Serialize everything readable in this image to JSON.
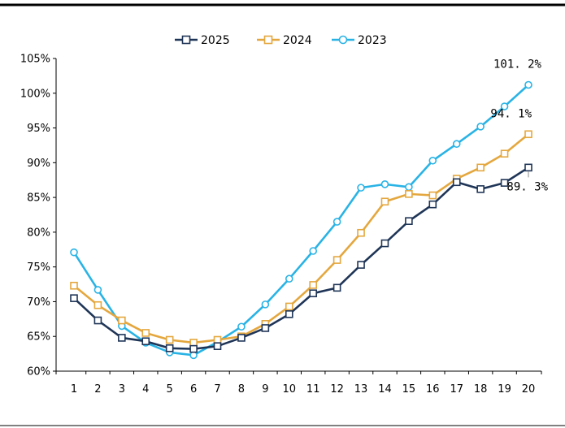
{
  "chart_data": {
    "type": "line",
    "x": [
      1,
      2,
      3,
      4,
      5,
      6,
      7,
      8,
      9,
      10,
      11,
      12,
      13,
      14,
      15,
      16,
      17,
      18,
      19,
      20
    ],
    "ylim": [
      60,
      105
    ],
    "yticks": [
      60,
      65,
      70,
      75,
      80,
      85,
      90,
      95,
      100,
      105
    ],
    "ytick_labels": [
      "60%",
      "65%",
      "70%",
      "75%",
      "80%",
      "85%",
      "90%",
      "95%",
      "100%",
      "105%"
    ],
    "xtick_labels": [
      "1",
      "2",
      "3",
      "4",
      "5",
      "6",
      "7",
      "8",
      "9",
      "10",
      "11",
      "12",
      "13",
      "14",
      "15",
      "16",
      "17",
      "18",
      "19",
      "20"
    ],
    "grid": false,
    "legend_position": "top-center",
    "series": [
      {
        "name": "2025",
        "color": "#1f3557",
        "marker": "square",
        "values": [
          70.5,
          67.3,
          64.8,
          64.3,
          63.3,
          63.2,
          63.6,
          64.8,
          66.2,
          68.2,
          71.2,
          72.0,
          75.3,
          78.4,
          81.6,
          84.0,
          87.2,
          86.2,
          87.1,
          89.3
        ],
        "end_label": "89. 3%"
      },
      {
        "name": "2024",
        "color": "#e4a73e",
        "marker": "square",
        "values": [
          72.3,
          69.5,
          67.3,
          65.5,
          64.5,
          64.1,
          64.5,
          65.0,
          66.8,
          69.3,
          72.4,
          76.0,
          79.9,
          84.4,
          85.5,
          85.3,
          87.7,
          89.3,
          91.3,
          94.1
        ],
        "end_label": "94. 1%"
      },
      {
        "name": "2023",
        "color": "#29b3e5",
        "marker": "circle",
        "values": [
          77.1,
          71.7,
          66.5,
          64.1,
          62.7,
          62.3,
          64.2,
          66.4,
          69.6,
          73.3,
          77.3,
          81.5,
          86.4,
          86.9,
          86.5,
          90.3,
          92.7,
          95.2,
          98.1,
          101.2
        ],
        "end_label": "101. 2%"
      }
    ]
  }
}
